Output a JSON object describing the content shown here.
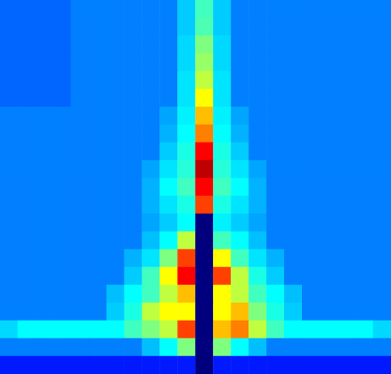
{
  "chart_data": {
    "type": "heatmap",
    "tick_labels": false,
    "color_range": [
      0,
      8
    ],
    "cells": [
      [
        1.8,
        1.8,
        1.8,
        1.8,
        2,
        2,
        2,
        2,
        2,
        2,
        2.6,
        3.5,
        2.6,
        2,
        2,
        2,
        2,
        2,
        2,
        2,
        2,
        2
      ],
      [
        1.8,
        1.8,
        1.8,
        1.8,
        2,
        2,
        2,
        2,
        2,
        2,
        2.6,
        3.6,
        2.6,
        2,
        2,
        2,
        2,
        2,
        2,
        2,
        2,
        2
      ],
      [
        1.8,
        1.8,
        1.8,
        1.8,
        2,
        2,
        2,
        2,
        2,
        2,
        2.7,
        4,
        2.7,
        2,
        2,
        2,
        2,
        2,
        2,
        2,
        2,
        2
      ],
      [
        1.8,
        1.8,
        1.8,
        1.8,
        2,
        2,
        2,
        2,
        2,
        2,
        2.7,
        4.2,
        2.7,
        2,
        2,
        2,
        2,
        2,
        2,
        2,
        2,
        2
      ],
      [
        1.8,
        1.8,
        1.8,
        1.8,
        2,
        2,
        2,
        2,
        2,
        2,
        2.8,
        4.5,
        2.8,
        2,
        2,
        2,
        2,
        2,
        2,
        2,
        2,
        2
      ],
      [
        1.8,
        1.8,
        1.8,
        1.8,
        2,
        2,
        2,
        2,
        2,
        2,
        2.8,
        5,
        2.8,
        2,
        2,
        2,
        2,
        2,
        2,
        2,
        2,
        2
      ],
      [
        2,
        2,
        2,
        2,
        2,
        2,
        2,
        2,
        2,
        2.3,
        2.9,
        5.5,
        2.9,
        2.3,
        2,
        2,
        2,
        2,
        2,
        2,
        2,
        2
      ],
      [
        2,
        2,
        2,
        2,
        2,
        2,
        2,
        2,
        2,
        2.4,
        3,
        6,
        3,
        2.4,
        2,
        2,
        2,
        2,
        2,
        2,
        2,
        2
      ],
      [
        2,
        2,
        2,
        2,
        2,
        2,
        2,
        2,
        2,
        2.6,
        3.2,
        7,
        3.2,
        2.6,
        2,
        2,
        2,
        2,
        2,
        2,
        2,
        2
      ],
      [
        2,
        2,
        2,
        2,
        2,
        2,
        2,
        2,
        2.3,
        2.8,
        3.3,
        7.5,
        3.3,
        2.8,
        2.3,
        2,
        2,
        2,
        2,
        2,
        2,
        2
      ],
      [
        2,
        2,
        2,
        2,
        2,
        2,
        2,
        2,
        2.4,
        3,
        3.5,
        7,
        3.5,
        3,
        2.4,
        2,
        2,
        2,
        2,
        2,
        2,
        2
      ],
      [
        2,
        2,
        2,
        2,
        2,
        2,
        2,
        2,
        2.4,
        2.8,
        3.2,
        6.5,
        3.2,
        2.8,
        2.4,
        2,
        2,
        2,
        2,
        2,
        2,
        2
      ],
      [
        2,
        2,
        2,
        2,
        2,
        2,
        2,
        2,
        2.3,
        2.6,
        3,
        0,
        2.9,
        2.6,
        2.3,
        2,
        2,
        2,
        2,
        2,
        2,
        2
      ],
      [
        2,
        2,
        2,
        2,
        2,
        2,
        2,
        2,
        2.5,
        3,
        4.5,
        0,
        3.5,
        3,
        2.5,
        2,
        2,
        2,
        2,
        2,
        2,
        2
      ],
      [
        2,
        2,
        2,
        2,
        2,
        2,
        2,
        2.4,
        2.8,
        4,
        6.5,
        0,
        5,
        3.5,
        2.8,
        2.4,
        2,
        2,
        2,
        2,
        2,
        2
      ],
      [
        2,
        2,
        2,
        2,
        2,
        2,
        2,
        2.6,
        3.5,
        5,
        7,
        0,
        6.5,
        4.5,
        3.2,
        2.6,
        2,
        2,
        2,
        2,
        2,
        2
      ],
      [
        2,
        2,
        2,
        2,
        2,
        2,
        2.5,
        3,
        3.5,
        4.5,
        5.5,
        0,
        5,
        4.5,
        3.5,
        3,
        2.5,
        2,
        2,
        2,
        2,
        2
      ],
      [
        2,
        2,
        2,
        2,
        2,
        2,
        2.6,
        3.2,
        4.5,
        5,
        5,
        0,
        5,
        5.5,
        4,
        3.2,
        2.6,
        2,
        2,
        2,
        2,
        2
      ],
      [
        2.7,
        3,
        3,
        3,
        3,
        3,
        3,
        3.5,
        4,
        4.5,
        6.5,
        0,
        5.5,
        6,
        4.5,
        3.5,
        3,
        3,
        3,
        3,
        3,
        2.7
      ],
      [
        2,
        2,
        2,
        2,
        2,
        2,
        2,
        2,
        2.5,
        3,
        4,
        0,
        4,
        3,
        2.5,
        2,
        2,
        2,
        2,
        2,
        2,
        2
      ],
      [
        1.2,
        1.2,
        1.2,
        1.2,
        1.2,
        1.2,
        1.2,
        1.2,
        1.2,
        1.2,
        1.2,
        0,
        1.2,
        1.2,
        1.2,
        1.2,
        1.2,
        1.2,
        1.2,
        1.2,
        1.2,
        1.2
      ]
    ]
  }
}
